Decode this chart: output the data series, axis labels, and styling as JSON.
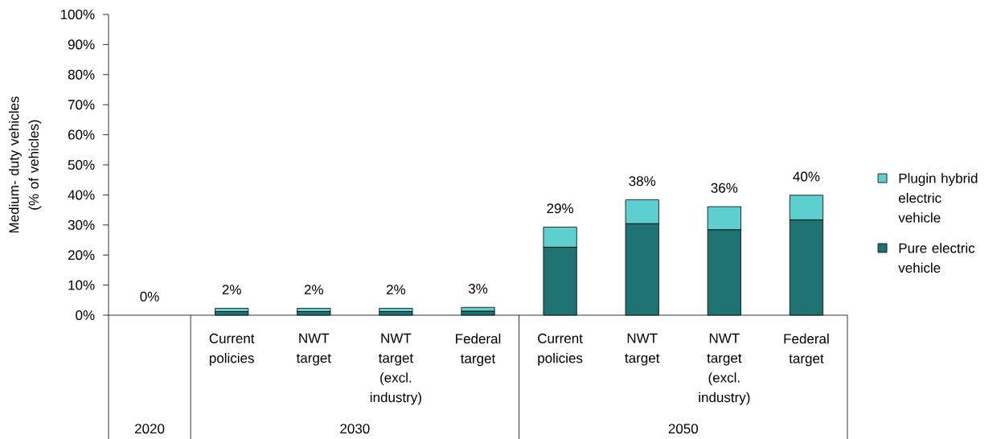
{
  "chart_data": {
    "type": "bar",
    "stacked": true,
    "ylabel": "Medium- duty vehicles (% of vehicles)",
    "categories": [
      null,
      "Current policies",
      "NWT target",
      "NWT target (excl. industry)",
      "Federal target",
      "Current policies",
      "NWT target",
      "NWT target (excl. industry)",
      "Federal target"
    ],
    "series": [
      {
        "name": "Pure electric vehicle",
        "color": "#1e7272",
        "values": [
          0,
          1.2,
          1.2,
          1.2,
          1.3,
          22.6,
          30.4,
          28.4,
          31.7
        ]
      },
      {
        "name": "Plugin hybrid electric vehicle",
        "color": "#5ecfcf",
        "values": [
          0,
          1.1,
          1.1,
          1.1,
          1.3,
          6.7,
          8.0,
          7.7,
          8.2
        ]
      }
    ],
    "totals": [
      "0%",
      "2%",
      "2%",
      "2%",
      "3%",
      "29%",
      "38%",
      "36%",
      "40%"
    ],
    "ylim": [
      0,
      100
    ],
    "yticks": [
      {
        "value": 0,
        "label": "0%"
      },
      {
        "value": 10,
        "label": "10%"
      },
      {
        "value": 20,
        "label": "20%"
      },
      {
        "value": 30,
        "label": "30%"
      },
      {
        "value": 40,
        "label": "40%"
      },
      {
        "value": 50,
        "label": "50%"
      },
      {
        "value": 60,
        "label": "60%"
      },
      {
        "value": 70,
        "label": "70%"
      },
      {
        "value": 80,
        "label": "80%"
      },
      {
        "value": 90,
        "label": "90%"
      },
      {
        "value": 100,
        "label": "100%"
      }
    ],
    "legend": "right",
    "annotations": [
      "2020",
      "2030",
      "2050"
    ]
  }
}
